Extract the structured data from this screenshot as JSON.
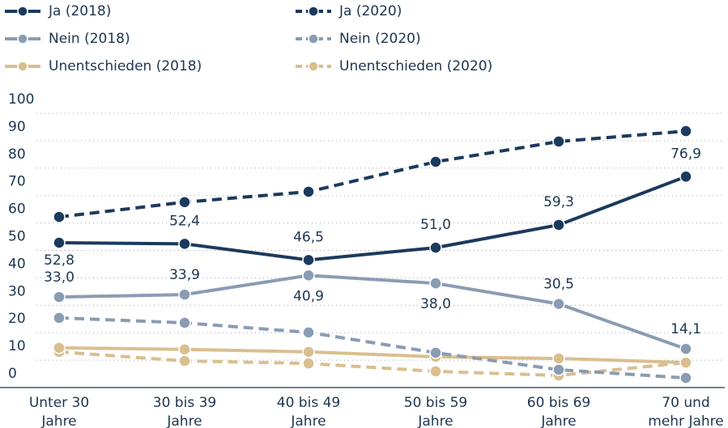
{
  "chart_data": {
    "type": "line",
    "categories": [
      [
        "Unter 30",
        "Jahre"
      ],
      [
        "30 bis 39",
        "Jahre"
      ],
      [
        "40 bis 49",
        "Jahre"
      ],
      [
        "50 bis 59",
        "Jahre"
      ],
      [
        "60 bis 69",
        "Jahre"
      ],
      [
        "70 und",
        "mehr Jahre"
      ]
    ],
    "ylim": [
      0,
      100
    ],
    "yticks": [
      0,
      10,
      20,
      30,
      40,
      50,
      60,
      70,
      80,
      90,
      100
    ],
    "grid": true,
    "series": [
      {
        "name": "Ja (2018)",
        "color": "#1b3a5c",
        "dashed": false,
        "values": [
          52.8,
          52.4,
          46.5,
          51.0,
          59.3,
          76.9
        ],
        "value_labels": [
          "52,8",
          "52,4",
          "46,5",
          "51,0",
          "59,3",
          "76,9"
        ]
      },
      {
        "name": "Ja (2020)",
        "color": "#1b3a5c",
        "dashed": true,
        "values": [
          62.2,
          67.6,
          71.4,
          82.3,
          89.7,
          93.5
        ]
      },
      {
        "name": "Nein (2018)",
        "color": "#8a9cb3",
        "dashed": false,
        "values": [
          33.0,
          33.9,
          40.9,
          38.0,
          30.5,
          14.1
        ],
        "value_labels": [
          "33,0",
          "33,9",
          "40,9",
          "38,0",
          "30,5",
          "14,1"
        ]
      },
      {
        "name": "Nein (2020)",
        "color": "#8a9cb3",
        "dashed": true,
        "values": [
          25.4,
          23.6,
          20.1,
          12.7,
          6.5,
          3.5
        ]
      },
      {
        "name": "Unentschieden (2018)",
        "color": "#d9bf8f",
        "dashed": false,
        "values": [
          14.5,
          13.9,
          13.0,
          11.2,
          10.6,
          9.1
        ]
      },
      {
        "name": "Unentschieden (2020)",
        "color": "#d9bf8f",
        "dashed": true,
        "values": [
          13.0,
          9.7,
          8.8,
          5.9,
          4.4,
          9.1
        ]
      }
    ]
  }
}
